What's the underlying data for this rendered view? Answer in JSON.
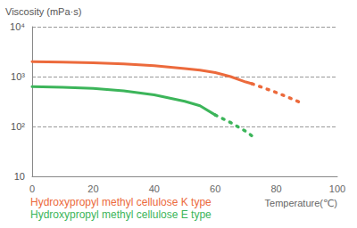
{
  "chart_data": {
    "type": "line",
    "y_label": "Viscosity (mPa·s)",
    "x_label": "Temperature(℃)",
    "log": "y",
    "grid": true,
    "legend": "bottom-left",
    "x": [
      0,
      10,
      20,
      30,
      40,
      50,
      55,
      60,
      65,
      70,
      72,
      75,
      80,
      85,
      88
    ],
    "xlim": [
      0,
      100
    ],
    "xticks": [
      0,
      20,
      40,
      60,
      80,
      100
    ],
    "ylim": [
      10,
      10000
    ],
    "yticks": [
      10,
      {
        "value": 100,
        "label": "10²"
      },
      {
        "value": 1000,
        "label": "10³"
      },
      {
        "value": 10000,
        "label": "10⁴"
      }
    ],
    "series": [
      {
        "name": "Hydroxypropyl methyl cellulose K type",
        "color": "#ec6a3c",
        "line_style": "solid",
        "values": [
          2000,
          1950,
          1900,
          1800,
          1650,
          1450,
          1350,
          1200,
          1000,
          780,
          720,
          null,
          null,
          null,
          null
        ]
      },
      {
        "name": "Hydroxypropyl methyl cellulose K type",
        "color": "#ec6a3c",
        "line_style": "dotted",
        "values": [
          null,
          null,
          null,
          null,
          null,
          null,
          null,
          null,
          null,
          null,
          720,
          620,
          480,
          360,
          300
        ]
      },
      {
        "name": "Hydroxypropyl methyl cellulose E type",
        "color": "#3cb55a",
        "line_style": "solid",
        "values": [
          630,
          610,
          580,
          520,
          430,
          320,
          260,
          170,
          null,
          null,
          null,
          null,
          null,
          null,
          null
        ]
      },
      {
        "name": "Hydroxypropyl methyl cellulose E type",
        "color": "#3cb55a",
        "line_style": "dotted",
        "values": [
          null,
          null,
          null,
          null,
          null,
          null,
          null,
          170,
          120,
          80,
          65,
          null,
          null,
          null,
          null
        ]
      }
    ]
  }
}
